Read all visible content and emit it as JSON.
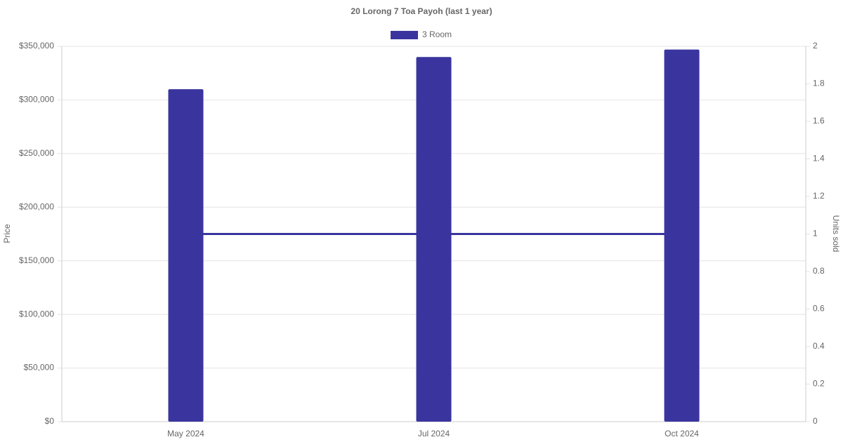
{
  "chart_data": {
    "type": "bar",
    "title": "20 Lorong 7 Toa Payoh (last 1 year)",
    "categories": [
      "May 2024",
      "Jul 2024",
      "Oct 2024"
    ],
    "series": [
      {
        "name": "3 Room",
        "type": "bar",
        "color": "#3a359e",
        "values": [
          310000,
          340000,
          347000
        ]
      },
      {
        "type": "line",
        "axis": "y2",
        "color": "#3a359e",
        "values": [
          1,
          1,
          1
        ]
      }
    ],
    "y_label": "Price",
    "y2_label": "Units sold",
    "ylim": [
      0,
      350000
    ],
    "yticks": [
      {
        "value": 0,
        "label": "$0"
      },
      {
        "value": 50000,
        "label": "$50,000"
      },
      {
        "value": 100000,
        "label": "$100,000"
      },
      {
        "value": 150000,
        "label": "$150,000"
      },
      {
        "value": 200000,
        "label": "$200,000"
      },
      {
        "value": 250000,
        "label": "$250,000"
      },
      {
        "value": 300000,
        "label": "$300,000"
      },
      {
        "value": 350000,
        "label": "$350,000"
      }
    ],
    "y2lim": [
      0,
      2
    ],
    "y2ticks": [
      0,
      0.2,
      0.4,
      0.6,
      0.8,
      1,
      1.2,
      1.4,
      1.6,
      1.8,
      2
    ],
    "grid": true,
    "legend": "top"
  }
}
